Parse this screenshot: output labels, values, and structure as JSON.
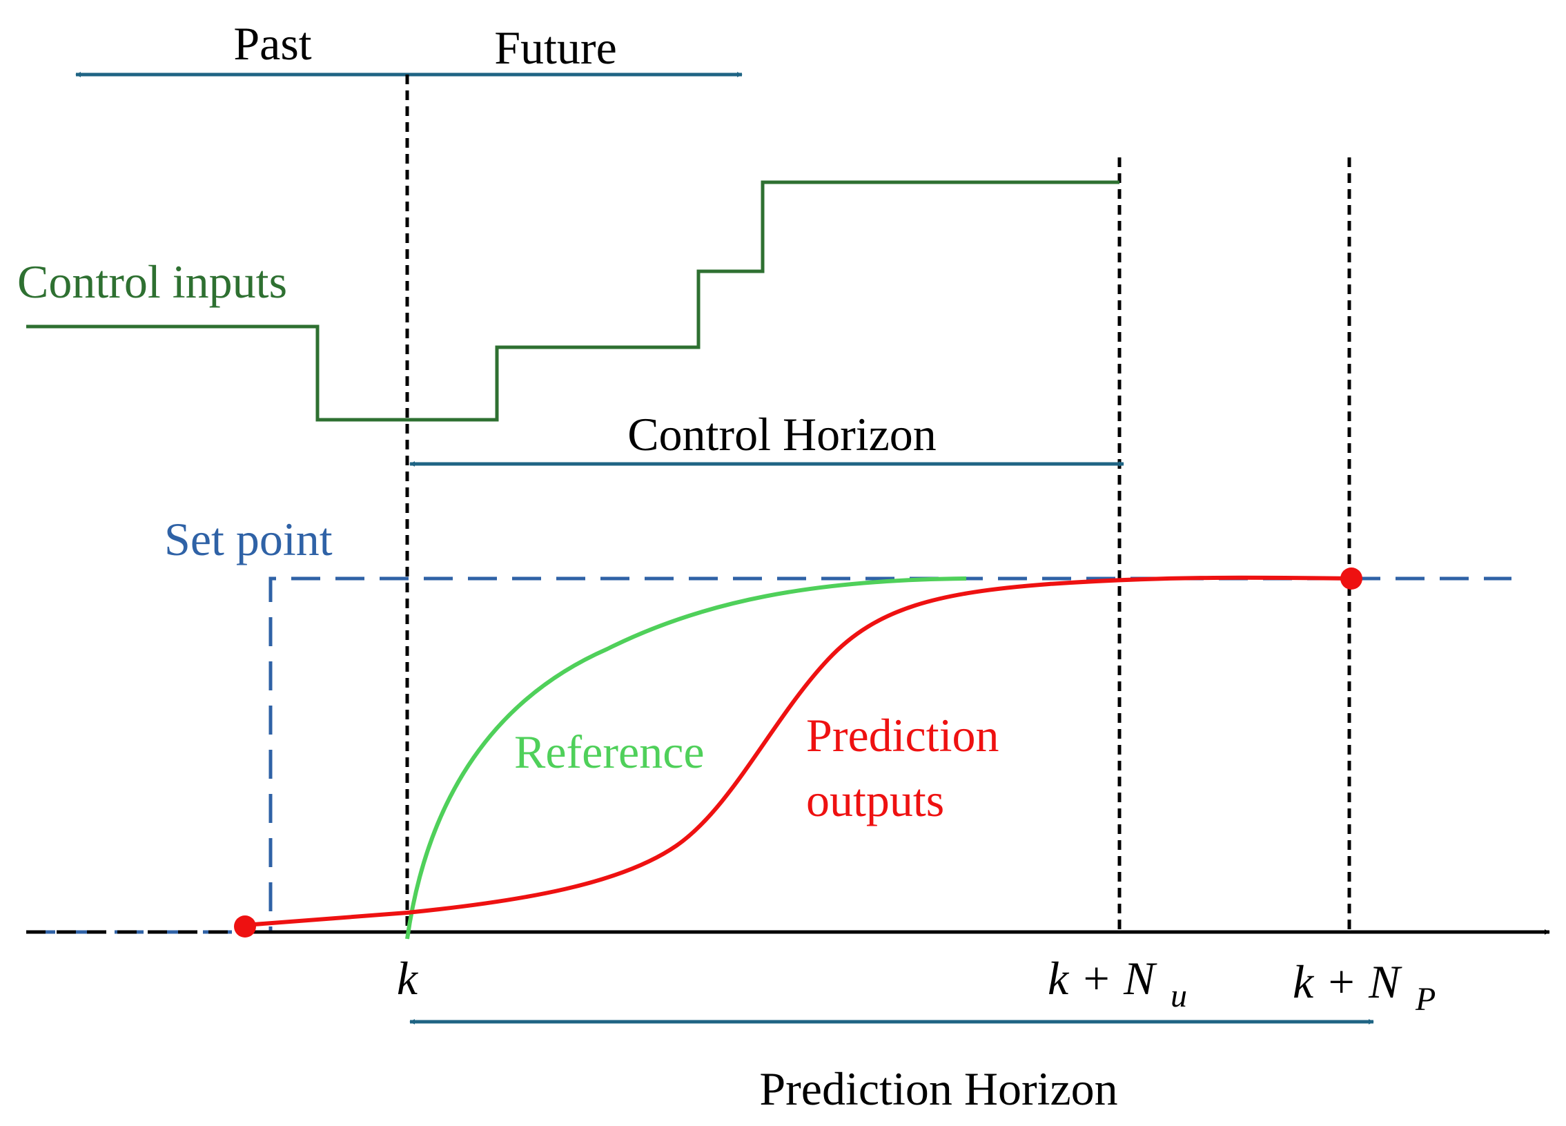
{
  "labels": {
    "past": "Past",
    "future": "Future",
    "control_inputs": "Control inputs",
    "control_horizon": "Control Horizon",
    "set_point": "Set point",
    "reference": "Reference",
    "prediction_line1": "Prediction",
    "prediction_line2": "outputs",
    "prediction_horizon": "Prediction Horizon"
  },
  "ticks": {
    "k": "k",
    "k_plus": "k + N",
    "sub_u": "u",
    "sub_p": "P"
  },
  "colors": {
    "teal_arrow": "#1f6484",
    "control_input": "#2e7031",
    "reference": "#4fd05a",
    "prediction": "#ee1111",
    "set_point": "#2f62a6",
    "axis": "#000000"
  }
}
